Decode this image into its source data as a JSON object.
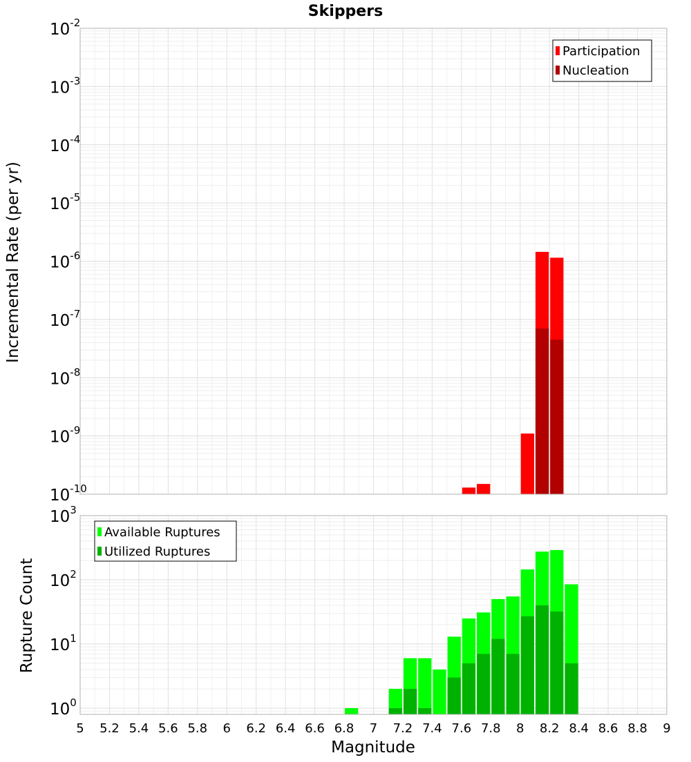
{
  "chart_data": [
    {
      "type": "bar",
      "title": "Skippers",
      "ylabel": "Incremental Rate (per yr)",
      "xlabel": "",
      "yscale": "log",
      "ylim": [
        1e-10,
        0.01
      ],
      "xlim": [
        5,
        9
      ],
      "bin_width": 0.1,
      "grid": true,
      "legend_position": "top-right",
      "y_tick_labels": [
        {
          "base": "10",
          "exp": "-2",
          "value": 0.01
        },
        {
          "base": "10",
          "exp": "-3",
          "value": 0.001
        },
        {
          "base": "10",
          "exp": "-4",
          "value": 0.0001
        },
        {
          "base": "10",
          "exp": "-5",
          "value": 1e-05
        },
        {
          "base": "10",
          "exp": "-6",
          "value": 1e-06
        },
        {
          "base": "10",
          "exp": "-7",
          "value": 1e-07
        },
        {
          "base": "10",
          "exp": "-8",
          "value": 1e-08
        },
        {
          "base": "10",
          "exp": "-9",
          "value": 1e-09
        },
        {
          "base": "10",
          "exp": "-10",
          "value": 1e-10
        }
      ],
      "series": [
        {
          "name": "Participation",
          "color": "#ff0000",
          "points": [
            {
              "x": 7.65,
              "y": 1.3e-10
            },
            {
              "x": 7.75,
              "y": 1.5e-10
            },
            {
              "x": 8.05,
              "y": 1.1e-09
            },
            {
              "x": 8.15,
              "y": 1.45e-06
            },
            {
              "x": 8.25,
              "y": 1.15e-06
            }
          ]
        },
        {
          "name": "Nucleation",
          "color": "#b20000",
          "points": [
            {
              "x": 8.15,
              "y": 7e-08
            },
            {
              "x": 8.25,
              "y": 4.5e-08
            }
          ]
        }
      ]
    },
    {
      "type": "bar",
      "title": "",
      "ylabel": "Rupture Count",
      "xlabel": "Magnitude",
      "yscale": "log",
      "ylim": [
        0.8,
        1000
      ],
      "xlim": [
        5,
        9
      ],
      "bin_width": 0.1,
      "grid": true,
      "legend_position": "top-left",
      "x_tick_labels": [
        "5",
        "5.2",
        "5.4",
        "5.6",
        "5.8",
        "6",
        "6.2",
        "6.4",
        "6.6",
        "6.8",
        "7",
        "7.2",
        "7.4",
        "7.6",
        "7.8",
        "8",
        "8.2",
        "8.4",
        "8.6",
        "8.8",
        "9"
      ],
      "y_tick_labels": [
        {
          "base": "10",
          "exp": "3",
          "value": 1000
        },
        {
          "base": "10",
          "exp": "2",
          "value": 100
        },
        {
          "base": "10",
          "exp": "1",
          "value": 10
        },
        {
          "base": "10",
          "exp": "0",
          "value": 1
        }
      ],
      "series": [
        {
          "name": "Available Ruptures",
          "color": "#00ff00",
          "points": [
            {
              "x": 6.85,
              "y": 1
            },
            {
              "x": 7.15,
              "y": 2
            },
            {
              "x": 7.25,
              "y": 6
            },
            {
              "x": 7.35,
              "y": 6
            },
            {
              "x": 7.45,
              "y": 4
            },
            {
              "x": 7.55,
              "y": 13
            },
            {
              "x": 7.65,
              "y": 25
            },
            {
              "x": 7.75,
              "y": 31
            },
            {
              "x": 7.85,
              "y": 50
            },
            {
              "x": 7.95,
              "y": 55
            },
            {
              "x": 8.05,
              "y": 145
            },
            {
              "x": 8.15,
              "y": 275
            },
            {
              "x": 8.25,
              "y": 290
            },
            {
              "x": 8.35,
              "y": 85
            }
          ]
        },
        {
          "name": "Utilized Ruptures",
          "color": "#00b200",
          "points": [
            {
              "x": 7.15,
              "y": 1
            },
            {
              "x": 7.25,
              "y": 2
            },
            {
              "x": 7.35,
              "y": 1
            },
            {
              "x": 7.55,
              "y": 3
            },
            {
              "x": 7.65,
              "y": 5
            },
            {
              "x": 7.75,
              "y": 7
            },
            {
              "x": 7.85,
              "y": 12
            },
            {
              "x": 7.95,
              "y": 7
            },
            {
              "x": 8.05,
              "y": 27
            },
            {
              "x": 8.15,
              "y": 40
            },
            {
              "x": 8.25,
              "y": 32
            },
            {
              "x": 8.35,
              "y": 5
            }
          ]
        }
      ]
    }
  ]
}
